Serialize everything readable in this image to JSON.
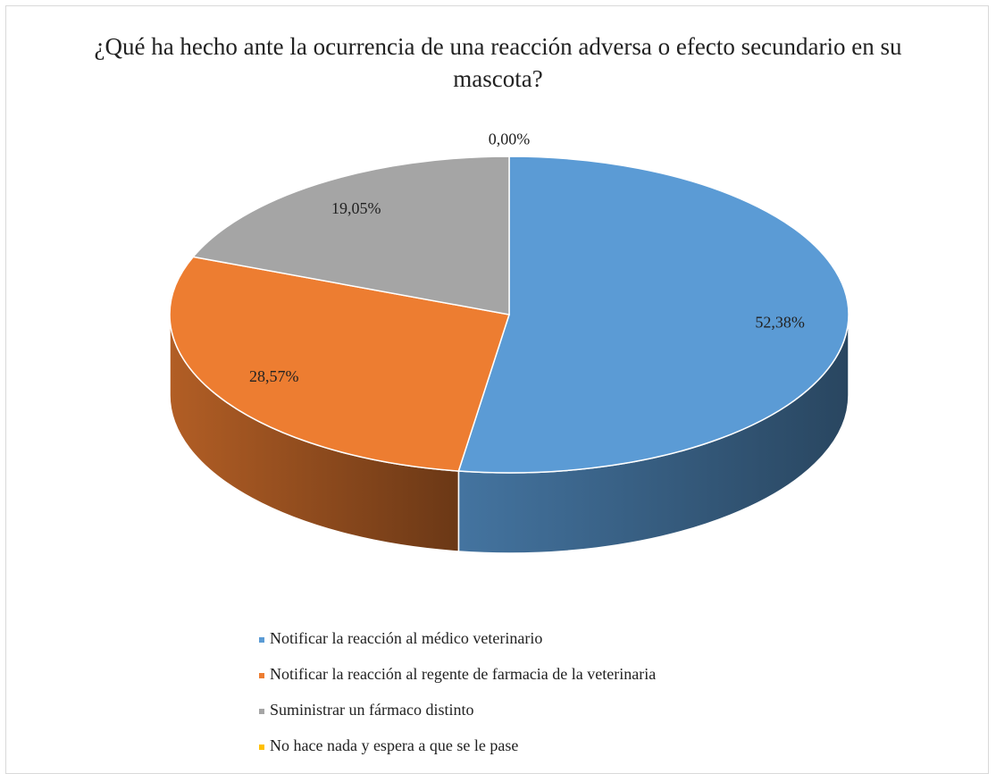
{
  "chart_data": {
    "type": "pie",
    "title": "¿Qué ha hecho ante la ocurrencia de una reacción adversa o efecto secundario en su mascota?",
    "categories": [
      "Notificar la reacción al médico veterinario",
      "Notificar la reacción al regente de farmacia de la veterinaria",
      "Suministrar un fármaco distinto",
      "No hace nada y espera a que se le pase"
    ],
    "values": [
      52.38,
      28.57,
      19.05,
      0
    ],
    "value_labels": [
      "52,38%",
      "28,57%",
      "19,05%",
      "0,00%"
    ],
    "colors": [
      "#5b9bd5",
      "#ed7d31",
      "#a5a5a5",
      "#ffc000"
    ],
    "legend": "bottom"
  }
}
